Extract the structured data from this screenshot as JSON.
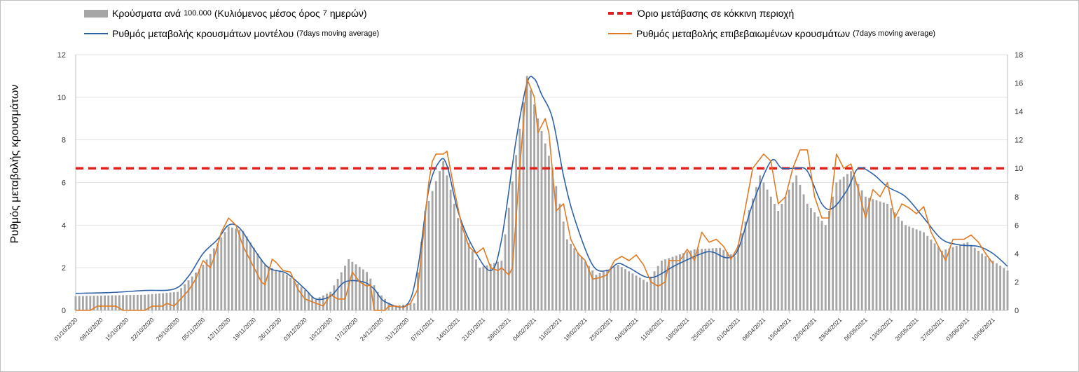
{
  "legend": {
    "bars_label": "Κρούσματα ανά",
    "bars_label_num": "100.000",
    "bars_label_paren_open": "(Κυλιόμενος μέσος όρος",
    "bars_label_num2": "7",
    "bars_label_rest": "ημερών)",
    "threshold_label": "Όριο μετάβασης σε κόκκινη περιοχή",
    "model_label": "Ρυθμός μεταβολής κρουσμάτων μοντέλου",
    "model_label_small": "(7days moving average)",
    "confirmed_label": "Ρυθμός μεταβολής επιβεβαιωμένων κρουσμάτων",
    "confirmed_label_small": "(7days moving average)"
  },
  "chart_data": {
    "type": "bar+line",
    "ylabel": "Ρυθμός μεταβολής κρουσμάτων",
    "ylim_left": [
      0,
      12
    ],
    "ylim_right": [
      0,
      18
    ],
    "yticks_left": [
      0,
      2,
      4,
      6,
      8,
      10,
      12
    ],
    "yticks_right": [
      0,
      2,
      4,
      6,
      8,
      10,
      12,
      14,
      16,
      18
    ],
    "grid": true,
    "x_start": "2020-10-01",
    "x_end": "2021-06-14",
    "xtick_labels": [
      "01/10/2020",
      "08/10/2020",
      "15/10/2020",
      "22/10/2020",
      "29/10/2020",
      "05/11/2020",
      "12/11/2020",
      "19/11/2020",
      "26/11/2020",
      "03/12/2020",
      "10/12/2020",
      "17/12/2020",
      "24/12/2020",
      "31/12/2020",
      "07/01/2021",
      "14/01/2021",
      "21/01/2021",
      "28/01/2021",
      "04/02/2021",
      "11/02/2021",
      "18/02/2021",
      "25/02/2021",
      "04/03/2021",
      "11/03/2021",
      "18/03/2021",
      "25/03/2021",
      "01/04/2021",
      "08/04/2021",
      "15/04/2021",
      "22/04/2021",
      "29/04/2021",
      "06/05/2021",
      "13/05/2021",
      "20/05/2021",
      "27/05/2021",
      "03/06/2021",
      "10/06/2021"
    ],
    "threshold": {
      "axis": "right",
      "value": 10,
      "color": "#e02020"
    },
    "bars_axis": "right",
    "bars_color": "#a6a6a6",
    "bars_keypoints": [
      [
        "2020-10-01",
        1.0
      ],
      [
        "2020-10-20",
        1.1
      ],
      [
        "2020-10-29",
        1.3
      ],
      [
        "2020-11-05",
        3.2
      ],
      [
        "2020-11-12",
        5.9
      ],
      [
        "2020-11-16",
        5.6
      ],
      [
        "2020-11-22",
        3.2
      ],
      [
        "2020-11-28",
        2.5
      ],
      [
        "2020-12-06",
        0.8
      ],
      [
        "2020-12-10",
        1.3
      ],
      [
        "2020-12-15",
        3.6
      ],
      [
        "2020-12-20",
        2.7
      ],
      [
        "2020-12-23",
        1.3
      ],
      [
        "2020-12-27",
        0.3
      ],
      [
        "2021-01-02",
        0.5
      ],
      [
        "2021-01-05",
        7.0
      ],
      [
        "2021-01-10",
        10.5
      ],
      [
        "2021-01-14",
        6.5
      ],
      [
        "2021-01-20",
        3.0
      ],
      [
        "2021-01-26",
        3.5
      ],
      [
        "2021-02-02",
        16.5
      ],
      [
        "2021-02-05",
        13.5
      ],
      [
        "2021-02-09",
        10.0
      ],
      [
        "2021-02-13",
        5.0
      ],
      [
        "2021-02-21",
        2.5
      ],
      [
        "2021-02-27",
        3.2
      ],
      [
        "2021-03-07",
        2.0
      ],
      [
        "2021-03-11",
        3.5
      ],
      [
        "2021-03-20",
        4.3
      ],
      [
        "2021-03-27",
        4.4
      ],
      [
        "2021-03-31",
        3.8
      ],
      [
        "2021-04-07",
        9.5
      ],
      [
        "2021-04-12",
        7.0
      ],
      [
        "2021-04-17",
        9.5
      ],
      [
        "2021-04-20",
        7.5
      ],
      [
        "2021-04-25",
        6.0
      ],
      [
        "2021-04-28",
        9.0
      ],
      [
        "2021-05-02",
        9.8
      ],
      [
        "2021-05-06",
        8.0
      ],
      [
        "2021-05-12",
        7.5
      ],
      [
        "2021-05-17",
        6.0
      ],
      [
        "2021-05-22",
        5.5
      ],
      [
        "2021-05-27",
        4.2
      ],
      [
        "2021-06-03",
        4.8
      ],
      [
        "2021-06-07",
        4.0
      ],
      [
        "2021-06-14",
        2.8
      ]
    ],
    "series": [
      {
        "name": "Ρυθμός μεταβολής κρουσμάτων μοντέλου",
        "axis": "right",
        "color": "#2e62a8",
        "points": [
          [
            "2020-10-01",
            1.2
          ],
          [
            "2020-10-10",
            1.25
          ],
          [
            "2020-10-20",
            1.4
          ],
          [
            "2020-10-28",
            1.5
          ],
          [
            "2020-11-01",
            2.4
          ],
          [
            "2020-11-05",
            4.0
          ],
          [
            "2020-11-09",
            5.0
          ],
          [
            "2020-11-12",
            6.0
          ],
          [
            "2020-11-15",
            5.8
          ],
          [
            "2020-11-19",
            4.3
          ],
          [
            "2020-11-23",
            3.0
          ],
          [
            "2020-11-28",
            2.6
          ],
          [
            "2020-12-03",
            1.5
          ],
          [
            "2020-12-06",
            0.8
          ],
          [
            "2020-12-10",
            1.0
          ],
          [
            "2020-12-14",
            2.0
          ],
          [
            "2020-12-19",
            2.0
          ],
          [
            "2020-12-22",
            1.5
          ],
          [
            "2020-12-25",
            0.6
          ],
          [
            "2020-12-31",
            0.4
          ],
          [
            "2021-01-03",
            3.0
          ],
          [
            "2021-01-06",
            8.5
          ],
          [
            "2021-01-09",
            10.5
          ],
          [
            "2021-01-11",
            10.2
          ],
          [
            "2021-01-14",
            7.0
          ],
          [
            "2021-01-18",
            4.5
          ],
          [
            "2021-01-23",
            2.8
          ],
          [
            "2021-01-26",
            5.0
          ],
          [
            "2021-01-30",
            12.0
          ],
          [
            "2021-02-02",
            16.0
          ],
          [
            "2021-02-04",
            16.3
          ],
          [
            "2021-02-06",
            15.2
          ],
          [
            "2021-02-09",
            13.5
          ],
          [
            "2021-02-12",
            9.5
          ],
          [
            "2021-02-15",
            6.5
          ],
          [
            "2021-02-20",
            3.2
          ],
          [
            "2021-02-24",
            2.8
          ],
          [
            "2021-02-27",
            3.3
          ],
          [
            "2021-03-02",
            3.0
          ],
          [
            "2021-03-08",
            2.3
          ],
          [
            "2021-03-15",
            3.2
          ],
          [
            "2021-03-22",
            4.0
          ],
          [
            "2021-03-25",
            4.1
          ],
          [
            "2021-03-29",
            3.7
          ],
          [
            "2021-04-01",
            4.3
          ],
          [
            "2021-04-05",
            7.5
          ],
          [
            "2021-04-10",
            10.5
          ],
          [
            "2021-04-13",
            10.0
          ],
          [
            "2021-04-17",
            10.0
          ],
          [
            "2021-04-20",
            9.8
          ],
          [
            "2021-04-24",
            7.5
          ],
          [
            "2021-04-27",
            7.2
          ],
          [
            "2021-05-01",
            8.5
          ],
          [
            "2021-05-04",
            10.0
          ],
          [
            "2021-05-08",
            9.6
          ],
          [
            "2021-05-12",
            8.7
          ],
          [
            "2021-05-17",
            8.0
          ],
          [
            "2021-05-22",
            6.5
          ],
          [
            "2021-05-27",
            5.0
          ],
          [
            "2021-06-01",
            4.6
          ],
          [
            "2021-06-06",
            4.5
          ],
          [
            "2021-06-10",
            4.0
          ],
          [
            "2021-06-14",
            3.1
          ]
        ]
      },
      {
        "name": "Ρυθμός μεταβολής επιβεβαιωμένων κρουσμάτων",
        "axis": "right",
        "color": "#e07b24",
        "points": [
          [
            "2020-10-01",
            0.0
          ],
          [
            "2020-10-05",
            0.0
          ],
          [
            "2020-10-07",
            0.3
          ],
          [
            "2020-10-12",
            0.3
          ],
          [
            "2020-10-14",
            0.0
          ],
          [
            "2020-10-20",
            0.0
          ],
          [
            "2020-10-22",
            0.3
          ],
          [
            "2020-10-25",
            0.3
          ],
          [
            "2020-10-26",
            0.5
          ],
          [
            "2020-10-28",
            0.3
          ],
          [
            "2020-11-01",
            1.4
          ],
          [
            "2020-11-03",
            2.2
          ],
          [
            "2020-11-05",
            3.5
          ],
          [
            "2020-11-07",
            3.0
          ],
          [
            "2020-11-08",
            3.7
          ],
          [
            "2020-11-10",
            5.5
          ],
          [
            "2020-11-12",
            6.5
          ],
          [
            "2020-11-14",
            6.0
          ],
          [
            "2020-11-16",
            4.5
          ],
          [
            "2020-11-18",
            3.5
          ],
          [
            "2020-11-21",
            2.0
          ],
          [
            "2020-11-22",
            1.8
          ],
          [
            "2020-11-24",
            3.6
          ],
          [
            "2020-11-25",
            3.4
          ],
          [
            "2020-11-27",
            2.8
          ],
          [
            "2020-11-29",
            2.7
          ],
          [
            "2020-12-01",
            1.5
          ],
          [
            "2020-12-03",
            0.8
          ],
          [
            "2020-12-06",
            0.5
          ],
          [
            "2020-12-08",
            0.3
          ],
          [
            "2020-12-10",
            1.1
          ],
          [
            "2020-12-12",
            0.8
          ],
          [
            "2020-12-14",
            0.8
          ],
          [
            "2020-12-16",
            2.7
          ],
          [
            "2020-12-18",
            2.0
          ],
          [
            "2020-12-20",
            1.7
          ],
          [
            "2020-12-21",
            1.8
          ],
          [
            "2020-12-22",
            0.0
          ],
          [
            "2020-12-25",
            0.0
          ],
          [
            "2020-12-26",
            0.3
          ],
          [
            "2020-12-28",
            0.3
          ],
          [
            "2020-12-30",
            0.2
          ],
          [
            "2021-01-01",
            0.5
          ],
          [
            "2021-01-03",
            1.5
          ],
          [
            "2021-01-06",
            9.0
          ],
          [
            "2021-01-07",
            10.5
          ],
          [
            "2021-01-08",
            11.0
          ],
          [
            "2021-01-10",
            11.0
          ],
          [
            "2021-01-11",
            11.2
          ],
          [
            "2021-01-13",
            8.5
          ],
          [
            "2021-01-15",
            6.0
          ],
          [
            "2021-01-17",
            4.5
          ],
          [
            "2021-01-19",
            4.0
          ],
          [
            "2021-01-21",
            4.4
          ],
          [
            "2021-01-23",
            3.0
          ],
          [
            "2021-01-25",
            2.8
          ],
          [
            "2021-01-26",
            3.0
          ],
          [
            "2021-01-28",
            2.5
          ],
          [
            "2021-01-29",
            3.0
          ],
          [
            "2021-01-31",
            10.0
          ],
          [
            "2021-02-02",
            16.3
          ],
          [
            "2021-02-04",
            15.0
          ],
          [
            "2021-02-05",
            12.5
          ],
          [
            "2021-02-07",
            13.5
          ],
          [
            "2021-02-08",
            12.5
          ],
          [
            "2021-02-10",
            7.0
          ],
          [
            "2021-02-12",
            7.5
          ],
          [
            "2021-02-14",
            5.0
          ],
          [
            "2021-02-16",
            4.0
          ],
          [
            "2021-02-18",
            3.5
          ],
          [
            "2021-02-20",
            2.2
          ],
          [
            "2021-02-22",
            2.3
          ],
          [
            "2021-02-24",
            2.5
          ],
          [
            "2021-02-26",
            3.5
          ],
          [
            "2021-02-28",
            3.8
          ],
          [
            "2021-03-02",
            3.5
          ],
          [
            "2021-03-04",
            3.9
          ],
          [
            "2021-03-06",
            3.2
          ],
          [
            "2021-03-08",
            2.0
          ],
          [
            "2021-03-10",
            1.7
          ],
          [
            "2021-03-12",
            2.0
          ],
          [
            "2021-03-13",
            3.5
          ],
          [
            "2021-03-16",
            3.5
          ],
          [
            "2021-03-18",
            4.3
          ],
          [
            "2021-03-20",
            3.5
          ],
          [
            "2021-03-22",
            5.5
          ],
          [
            "2021-03-24",
            4.8
          ],
          [
            "2021-03-26",
            5.0
          ],
          [
            "2021-03-28",
            4.5
          ],
          [
            "2021-03-30",
            3.6
          ],
          [
            "2021-04-01",
            4.5
          ],
          [
            "2021-04-05",
            10.0
          ],
          [
            "2021-04-08",
            11.0
          ],
          [
            "2021-04-10",
            10.5
          ],
          [
            "2021-04-12",
            7.5
          ],
          [
            "2021-04-14",
            8.0
          ],
          [
            "2021-04-16",
            10.0
          ],
          [
            "2021-04-18",
            11.3
          ],
          [
            "2021-04-20",
            11.3
          ],
          [
            "2021-04-22",
            8.0
          ],
          [
            "2021-04-24",
            6.5
          ],
          [
            "2021-04-26",
            6.5
          ],
          [
            "2021-04-28",
            11.0
          ],
          [
            "2021-04-30",
            10.0
          ],
          [
            "2021-05-02",
            10.3
          ],
          [
            "2021-05-04",
            8.5
          ],
          [
            "2021-05-06",
            6.5
          ],
          [
            "2021-05-08",
            8.5
          ],
          [
            "2021-05-10",
            8.0
          ],
          [
            "2021-05-12",
            9.0
          ],
          [
            "2021-05-14",
            6.5
          ],
          [
            "2021-05-16",
            7.5
          ],
          [
            "2021-05-18",
            7.2
          ],
          [
            "2021-05-20",
            6.8
          ],
          [
            "2021-05-22",
            7.3
          ],
          [
            "2021-05-24",
            5.5
          ],
          [
            "2021-05-26",
            4.5
          ],
          [
            "2021-05-28",
            3.5
          ],
          [
            "2021-05-30",
            5.0
          ],
          [
            "2021-06-02",
            5.0
          ],
          [
            "2021-06-04",
            5.3
          ],
          [
            "2021-06-06",
            4.8
          ],
          [
            "2021-06-08",
            4.0
          ],
          [
            "2021-06-10",
            3.3
          ]
        ]
      }
    ]
  }
}
